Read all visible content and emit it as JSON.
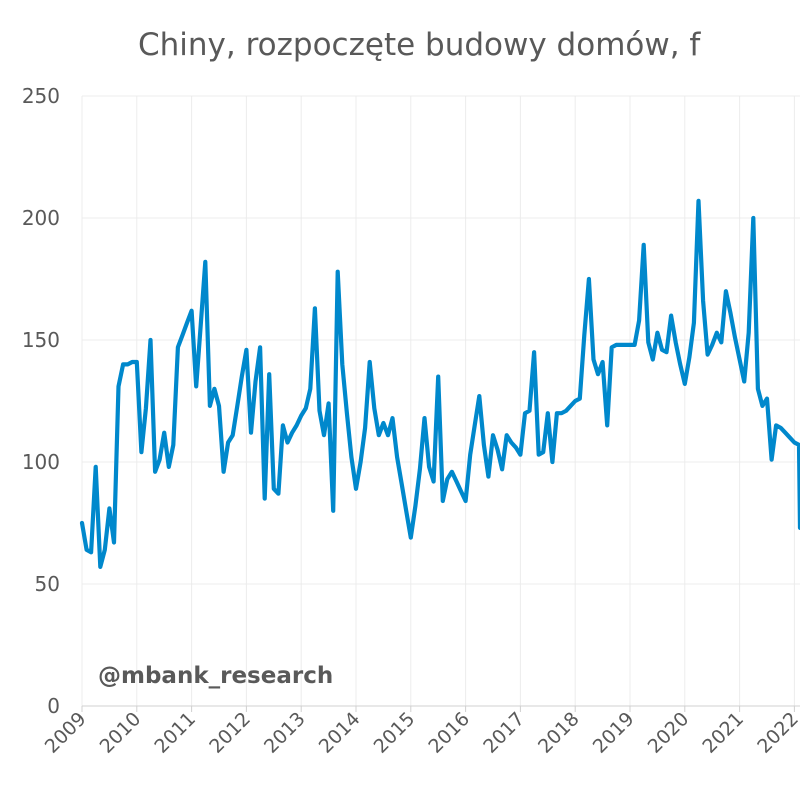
{
  "watermark": "@mbank_research",
  "chart_data": {
    "type": "line",
    "title": "Chiny, rozpoczęte budowy domów, f",
    "xlabel": "",
    "ylabel": "",
    "ylim": [
      0,
      250
    ],
    "y_ticks": [
      "0",
      "50",
      "100",
      "150",
      "200",
      "250"
    ],
    "x_ticks": [
      "2009",
      "2010",
      "2011",
      "2012",
      "2013",
      "2014",
      "2015",
      "2016",
      "2017",
      "2018",
      "2019",
      "2020",
      "2021",
      "2022"
    ],
    "grid": true,
    "legend": "none",
    "series": [
      {
        "color": "#0088cc",
        "points": [
          [
            "2009-01",
            75
          ],
          [
            "2009-02",
            64
          ],
          [
            "2009-03",
            63
          ],
          [
            "2009-04",
            98
          ],
          [
            "2009-05",
            57
          ],
          [
            "2009-06",
            64
          ],
          [
            "2009-07",
            81
          ],
          [
            "2009-08",
            67
          ],
          [
            "2009-09",
            131
          ],
          [
            "2009-10",
            140
          ],
          [
            "2009-11",
            140
          ],
          [
            "2009-12",
            141
          ],
          [
            "2010-01",
            141
          ],
          [
            "2010-02",
            104
          ],
          [
            "2010-03",
            122
          ],
          [
            "2010-04",
            150
          ],
          [
            "2010-05",
            96
          ],
          [
            "2010-06",
            101
          ],
          [
            "2010-07",
            112
          ],
          [
            "2010-08",
            98
          ],
          [
            "2010-09",
            107
          ],
          [
            "2010-10",
            147
          ],
          [
            "2010-11",
            152
          ],
          [
            "2010-12",
            157
          ],
          [
            "2011-01",
            162
          ],
          [
            "2011-02",
            131
          ],
          [
            "2011-03",
            156
          ],
          [
            "2011-04",
            182
          ],
          [
            "2011-05",
            123
          ],
          [
            "2011-06",
            130
          ],
          [
            "2011-07",
            123
          ],
          [
            "2011-08",
            96
          ],
          [
            "2011-09",
            108
          ],
          [
            "2011-10",
            111
          ],
          [
            "2011-11",
            123
          ],
          [
            "2011-12",
            135
          ],
          [
            "2012-01",
            146
          ],
          [
            "2012-02",
            112
          ],
          [
            "2012-03",
            133
          ],
          [
            "2012-04",
            147
          ],
          [
            "2012-05",
            85
          ],
          [
            "2012-06",
            136
          ],
          [
            "2012-07",
            89
          ],
          [
            "2012-08",
            87
          ],
          [
            "2012-09",
            115
          ],
          [
            "2012-10",
            108
          ],
          [
            "2012-11",
            112
          ],
          [
            "2012-12",
            115
          ],
          [
            "2013-01",
            119
          ],
          [
            "2013-02",
            122
          ],
          [
            "2013-03",
            130
          ],
          [
            "2013-04",
            163
          ],
          [
            "2013-05",
            121
          ],
          [
            "2013-06",
            111
          ],
          [
            "2013-07",
            124
          ],
          [
            "2013-08",
            80
          ],
          [
            "2013-09",
            178
          ],
          [
            "2013-10",
            140
          ],
          [
            "2013-11",
            120
          ],
          [
            "2013-12",
            102
          ],
          [
            "2014-01",
            89
          ],
          [
            "2014-02",
            100
          ],
          [
            "2014-03",
            114
          ],
          [
            "2014-04",
            141
          ],
          [
            "2014-05",
            122
          ],
          [
            "2014-06",
            111
          ],
          [
            "2014-07",
            116
          ],
          [
            "2014-08",
            111
          ],
          [
            "2014-09",
            118
          ],
          [
            "2014-10",
            102
          ],
          [
            "2014-11",
            91
          ],
          [
            "2014-12",
            80
          ],
          [
            "2015-01",
            69
          ],
          [
            "2015-02",
            82
          ],
          [
            "2015-03",
            97
          ],
          [
            "2015-04",
            118
          ],
          [
            "2015-05",
            98
          ],
          [
            "2015-06",
            92
          ],
          [
            "2015-07",
            135
          ],
          [
            "2015-08",
            84
          ],
          [
            "2015-09",
            93
          ],
          [
            "2015-10",
            96
          ],
          [
            "2015-11",
            92
          ],
          [
            "2015-12",
            88
          ],
          [
            "2016-01",
            84
          ],
          [
            "2016-02",
            103
          ],
          [
            "2016-03",
            115
          ],
          [
            "2016-04",
            127
          ],
          [
            "2016-05",
            107
          ],
          [
            "2016-06",
            94
          ],
          [
            "2016-07",
            111
          ],
          [
            "2016-08",
            105
          ],
          [
            "2016-09",
            97
          ],
          [
            "2016-10",
            111
          ],
          [
            "2016-11",
            108
          ],
          [
            "2016-12",
            106
          ],
          [
            "2017-01",
            103
          ],
          [
            "2017-02",
            120
          ],
          [
            "2017-03",
            121
          ],
          [
            "2017-04",
            145
          ],
          [
            "2017-05",
            103
          ],
          [
            "2017-06",
            104
          ],
          [
            "2017-07",
            120
          ],
          [
            "2017-08",
            100
          ],
          [
            "2017-09",
            120
          ],
          [
            "2017-10",
            120
          ],
          [
            "2017-11",
            121
          ],
          [
            "2017-12",
            123
          ],
          [
            "2018-01",
            125
          ],
          [
            "2018-02",
            126
          ],
          [
            "2018-03",
            152
          ],
          [
            "2018-04",
            175
          ],
          [
            "2018-05",
            142
          ],
          [
            "2018-06",
            136
          ],
          [
            "2018-07",
            141
          ],
          [
            "2018-08",
            115
          ],
          [
            "2018-09",
            147
          ],
          [
            "2018-10",
            148
          ],
          [
            "2018-11",
            148
          ],
          [
            "2018-12",
            148
          ],
          [
            "2019-01",
            148
          ],
          [
            "2019-02",
            148
          ],
          [
            "2019-03",
            158
          ],
          [
            "2019-04",
            189
          ],
          [
            "2019-05",
            149
          ],
          [
            "2019-06",
            142
          ],
          [
            "2019-07",
            153
          ],
          [
            "2019-08",
            146
          ],
          [
            "2019-09",
            145
          ],
          [
            "2019-10",
            160
          ],
          [
            "2019-11",
            149
          ],
          [
            "2019-12",
            140
          ],
          [
            "2020-01",
            132
          ],
          [
            "2020-02",
            143
          ],
          [
            "2020-03",
            157
          ],
          [
            "2020-04",
            207
          ],
          [
            "2020-05",
            166
          ],
          [
            "2020-06",
            144
          ],
          [
            "2020-07",
            148
          ],
          [
            "2020-08",
            153
          ],
          [
            "2020-09",
            149
          ],
          [
            "2020-10",
            170
          ],
          [
            "2020-11",
            161
          ],
          [
            "2020-12",
            151
          ],
          [
            "2021-01",
            142
          ],
          [
            "2021-02",
            133
          ],
          [
            "2021-03",
            153
          ],
          [
            "2021-04",
            200
          ],
          [
            "2021-05",
            130
          ],
          [
            "2021-06",
            123
          ],
          [
            "2021-07",
            126
          ],
          [
            "2021-08",
            101
          ],
          [
            "2021-09",
            115
          ],
          [
            "2021-10",
            114
          ],
          [
            "2021-11",
            112
          ],
          [
            "2021-12",
            110
          ],
          [
            "2022-01",
            108
          ],
          [
            "2022-02",
            107
          ],
          [
            "2022-03",
            73
          ]
        ]
      }
    ]
  }
}
